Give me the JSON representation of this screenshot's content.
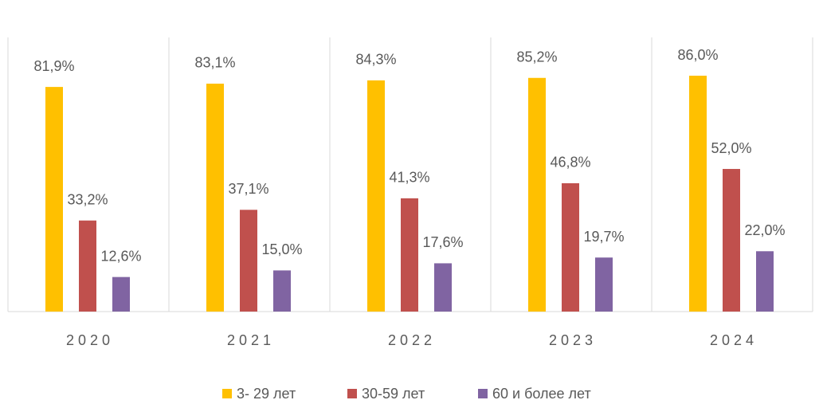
{
  "chart_data": {
    "type": "bar",
    "categories": [
      "2020",
      "2021",
      "2022",
      "2023",
      "2024"
    ],
    "series": [
      {
        "name": "3- 29 лет",
        "color": "#FFC000",
        "values": [
          81.9,
          83.1,
          84.3,
          85.2,
          86.0
        ],
        "value_labels": [
          "81,9%",
          "83,1%",
          "84,3%",
          "85,2%",
          "86,0%"
        ]
      },
      {
        "name": "30-59 лет",
        "color": "#C0504D",
        "values": [
          33.2,
          37.1,
          41.3,
          46.8,
          52.0
        ],
        "value_labels": [
          "33,2%",
          "37,1%",
          "41,3%",
          "46,8%",
          "52,0%"
        ]
      },
      {
        "name": "60 и более лет",
        "color": "#8064A2",
        "values": [
          12.6,
          15.0,
          17.6,
          19.7,
          22.0
        ],
        "value_labels": [
          "12,6%",
          "15,0%",
          "17,6%",
          "19,7%",
          "22,0%"
        ]
      }
    ],
    "legend": "bottom"
  }
}
